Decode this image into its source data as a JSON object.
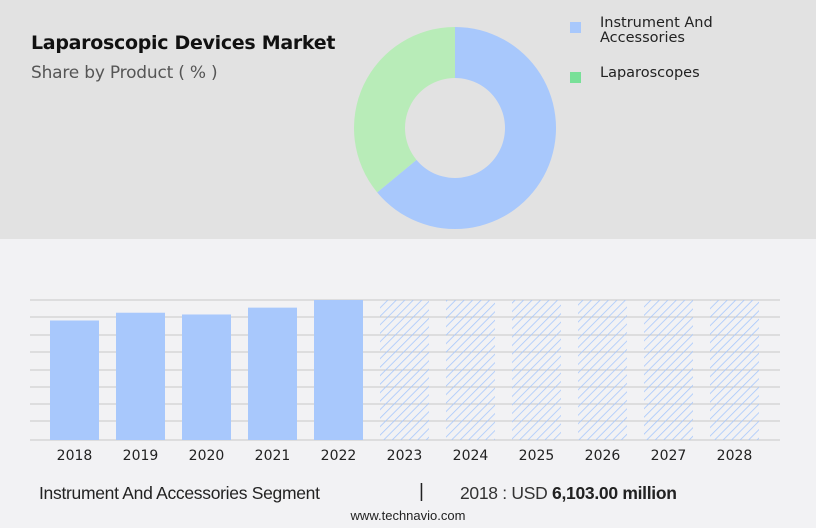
{
  "header": {
    "title": "Laparoscopic Devices Market",
    "subtitle": "Share by Product ( % )"
  },
  "legend": {
    "items": [
      {
        "label_line1": "Instrument And",
        "label_line2": "Accessories",
        "color": "#a8c8fc"
      },
      {
        "label_line1": "Laparoscopes",
        "label_line2": "",
        "color": "#78e098"
      }
    ]
  },
  "footer": {
    "segment": "Instrument And Accessories Segment",
    "separator": "|",
    "year_label": "2018 : USD",
    "value": "6,103.00 million",
    "website": "www.technavio.com"
  },
  "colors": {
    "bar": "#a8c8fc",
    "donut_blue": "#a8c8fc",
    "donut_green": "#b8ecb8",
    "grid": "#c8c8c8"
  },
  "chart_data": [
    {
      "type": "pie",
      "title": "Laparoscopic Devices Market",
      "subtitle": "Share by Product ( % )",
      "donut": true,
      "labels": [
        "Instrument And Accessories",
        "Laparoscopes"
      ],
      "values": [
        64,
        36
      ]
    },
    {
      "type": "bar",
      "title": "Instrument And Accessories Segment",
      "categories": [
        "2018",
        "2019",
        "2020",
        "2021",
        "2022",
        "2023",
        "2024",
        "2025",
        "2026",
        "2027",
        "2028"
      ],
      "values": [
        6103,
        6500,
        6410,
        6760,
        7150,
        null,
        null,
        null,
        null,
        null,
        null
      ],
      "forecast": [
        false,
        false,
        false,
        false,
        false,
        true,
        true,
        true,
        true,
        true,
        true
      ],
      "annotation": "2018 : USD 6,103.00 million",
      "xlabel": "",
      "ylabel": "",
      "grid": true,
      "y_axis_labels_shown": false
    }
  ]
}
